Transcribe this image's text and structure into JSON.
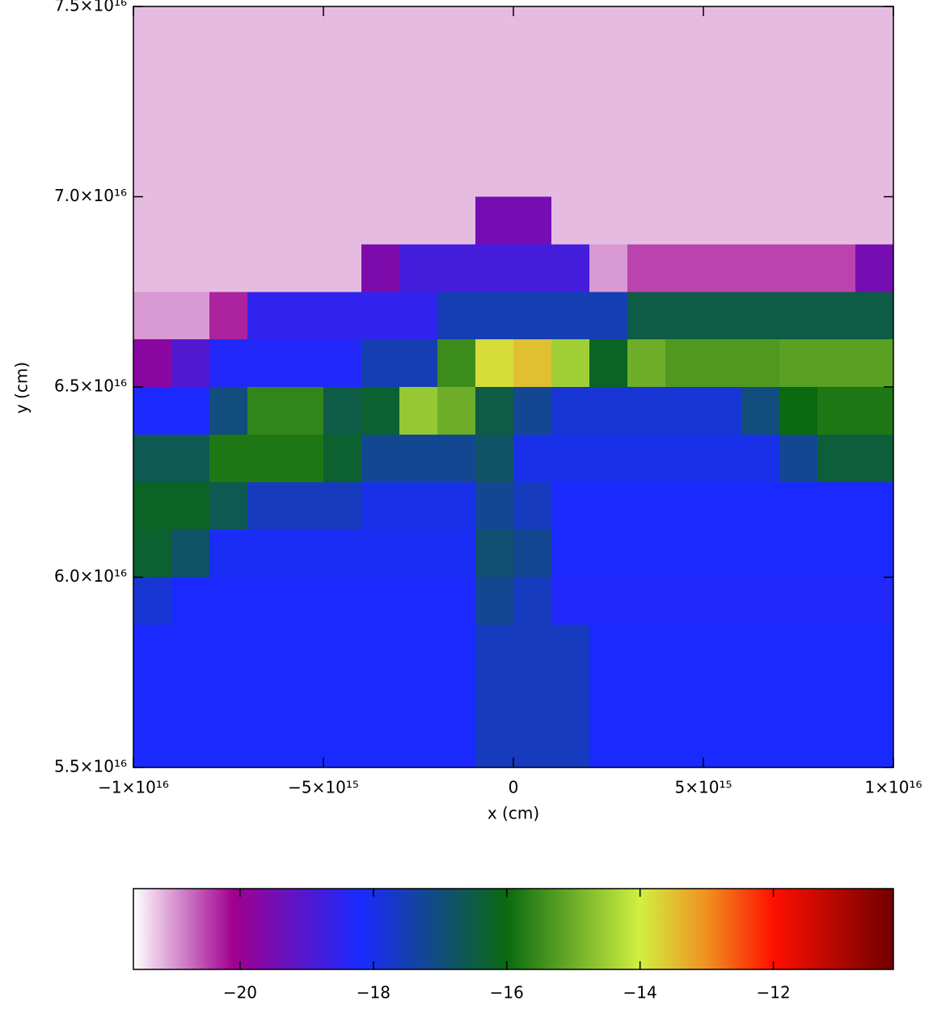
{
  "chart_data": {
    "type": "heatmap",
    "xlabel": "x (cm)",
    "ylabel": "y (cm)",
    "xlim": [
      -1e+16,
      1e+16
    ],
    "ylim": [
      5.5e+16,
      7.5e+16
    ],
    "xticks": [
      {
        "value": -1e+16,
        "label": "−1×10¹⁶"
      },
      {
        "value": -5000000000000000.0,
        "label": "−5×10¹⁵"
      },
      0,
      {
        "value": 5000000000000000.0,
        "label": "5×10¹⁵"
      },
      {
        "value": 1e+16,
        "label": "1×10¹⁶"
      }
    ],
    "yticks": [
      {
        "value": 5.5e+16,
        "label": "5.5×10¹⁶"
      },
      {
        "value": 6e+16,
        "label": "6.0×10¹⁶"
      },
      {
        "value": 6.5e+16,
        "label": "6.5×10¹⁶"
      },
      {
        "value": 7e+16,
        "label": "7.0×10¹⁶"
      },
      {
        "value": 7.5e+16,
        "label": "7.5×10¹⁶"
      }
    ],
    "clim": [
      -21.6,
      -10.2
    ],
    "cticks": [
      {
        "value": -20,
        "label": "−20"
      },
      {
        "value": -18,
        "label": "−18"
      },
      {
        "value": -16,
        "label": "−16"
      },
      {
        "value": -14,
        "label": "−14"
      },
      {
        "value": -12,
        "label": "−12"
      }
    ],
    "colormap": [
      {
        "value": -21.6,
        "color": "#ffffff"
      },
      {
        "value": -20.1,
        "color": "#a0008f"
      },
      {
        "value": -18.2,
        "color": "#1a2aff"
      },
      {
        "value": -16,
        "color": "#0a6a10"
      },
      {
        "value": -14,
        "color": "#d0f040"
      },
      {
        "value": -13,
        "color": "#f09020"
      },
      {
        "value": -12,
        "color": "#ff1000"
      },
      {
        "value": -10.2,
        "color": "#700000"
      }
    ],
    "z": [
      [
        -21.2,
        -21.2,
        -21.2,
        -21.2,
        -21.2,
        -21.2,
        -21.2,
        -21.2,
        -21.2,
        -21.2,
        -21.2,
        -21.2,
        -21.2,
        -21.2,
        -21.2,
        -21.2,
        -21.2,
        -21.2,
        -21.2,
        -21.2
      ],
      [
        -21.2,
        -21.2,
        -21.2,
        -21.2,
        -21.2,
        -21.2,
        -21.2,
        -21.2,
        -21.2,
        -21.2,
        -21.2,
        -21.2,
        -21.2,
        -21.2,
        -21.2,
        -21.2,
        -21.2,
        -21.2,
        -21.2,
        -21.2
      ],
      [
        -21.2,
        -21.2,
        -21.2,
        -21.2,
        -21.2,
        -21.2,
        -21.2,
        -21.2,
        -21.2,
        -21.2,
        -21.2,
        -21.2,
        -21.2,
        -21.2,
        -21.2,
        -21.2,
        -21.2,
        -21.2,
        -21.2,
        -21.2
      ],
      [
        -21.2,
        -21.2,
        -21.2,
        -21.2,
        -21.2,
        -21.2,
        -21.2,
        -21.2,
        -21.2,
        -21.2,
        -21.2,
        -21.2,
        -21.2,
        -21.2,
        -21.2,
        -21.2,
        -21.2,
        -21.2,
        -21.2,
        -21.2
      ],
      [
        -21.2,
        -21.2,
        -21.2,
        -21.2,
        -21.2,
        -21.2,
        -21.2,
        -21.2,
        -21.2,
        -19.5,
        -19.5,
        -21.2,
        -21.2,
        -21.2,
        -21.2,
        -21.2,
        -21.2,
        -21.2,
        -21.2,
        -21.2
      ],
      [
        -21.2,
        -21.2,
        -21.2,
        -21.2,
        -21.2,
        -21.2,
        -19.6,
        -18.8,
        -18.8,
        -18.8,
        -18.8,
        -18.8,
        -21,
        -20.5,
        -20.5,
        -20.5,
        -20.5,
        -20.5,
        -20.5,
        -19.5
      ],
      [
        -21,
        -21,
        -20.3,
        -18.5,
        -18.5,
        -18.5,
        -18.5,
        -18.5,
        -17.5,
        -17.5,
        -17.5,
        -17.5,
        -17.5,
        -16.5,
        -16.5,
        -16.5,
        -16.5,
        -16.5,
        -16.5,
        -16.5
      ],
      [
        -19.8,
        -19,
        -18.3,
        -18.3,
        -18.3,
        -18.3,
        -17.5,
        -17.5,
        -15.5,
        -13.8,
        -13.5,
        -14.5,
        -16.2,
        -15,
        -15.3,
        -15.3,
        -15.3,
        -15.2,
        -15.2,
        -15.2
      ],
      [
        -18.2,
        -18.2,
        -17,
        -15.6,
        -15.6,
        -16.5,
        -16.3,
        -14.6,
        -15,
        -16.5,
        -17.2,
        -17.8,
        -17.8,
        -17.8,
        -17.8,
        -17.8,
        -17,
        -16,
        -15.8,
        -15.8
      ],
      [
        -16.6,
        -16.6,
        -15.8,
        -15.8,
        -15.8,
        -16.3,
        -17.2,
        -17.2,
        -17.2,
        -16.8,
        -18,
        -18,
        -18,
        -18,
        -18,
        -18,
        -18,
        -17.2,
        -16.4,
        -16.4
      ],
      [
        -16.2,
        -16.2,
        -16.6,
        -17.6,
        -17.6,
        -17.6,
        -18,
        -18,
        -18,
        -17.2,
        -17.6,
        -18.2,
        -18.2,
        -18.2,
        -18.2,
        -18.2,
        -18.2,
        -18.2,
        -18.2,
        -18.2
      ],
      [
        -16.3,
        -16.8,
        -18.1,
        -18.1,
        -18.1,
        -18.1,
        -18.1,
        -18.1,
        -18.1,
        -16.9,
        -17.2,
        -18.2,
        -18.2,
        -18.2,
        -18.2,
        -18.2,
        -18.2,
        -18.2,
        -18.2,
        -18.2
      ],
      [
        -17.8,
        -18.2,
        -18.2,
        -18.2,
        -18.2,
        -18.2,
        -18.2,
        -18.2,
        -18.2,
        -17.2,
        -17.6,
        -18.3,
        -18.3,
        -18.3,
        -18.3,
        -18.3,
        -18.3,
        -18.3,
        -18.3,
        -18.3
      ],
      [
        -18.2,
        -18.2,
        -18.2,
        -18.2,
        -18.2,
        -18.2,
        -18.2,
        -18.2,
        -18.2,
        -17.6,
        -17.6,
        -17.6,
        -18.2,
        -18.2,
        -18.2,
        -18.2,
        -18.2,
        -18.2,
        -18.2,
        -18.2
      ],
      [
        -18.2,
        -18.2,
        -18.2,
        -18.2,
        -18.2,
        -18.2,
        -18.2,
        -18.2,
        -18.2,
        -17.6,
        -17.6,
        -17.6,
        -18.2,
        -18.2,
        -18.2,
        -18.2,
        -18.2,
        -18.2,
        -18.2,
        -18.2
      ],
      [
        -18.2,
        -18.2,
        -18.2,
        -18.2,
        -18.2,
        -18.2,
        -18.2,
        -18.2,
        -18.2,
        -17.6,
        -17.6,
        -17.6,
        -18.2,
        -18.2,
        -18.2,
        -18.2,
        -18.2,
        -18.2,
        -18.2,
        -18.2
      ]
    ]
  }
}
